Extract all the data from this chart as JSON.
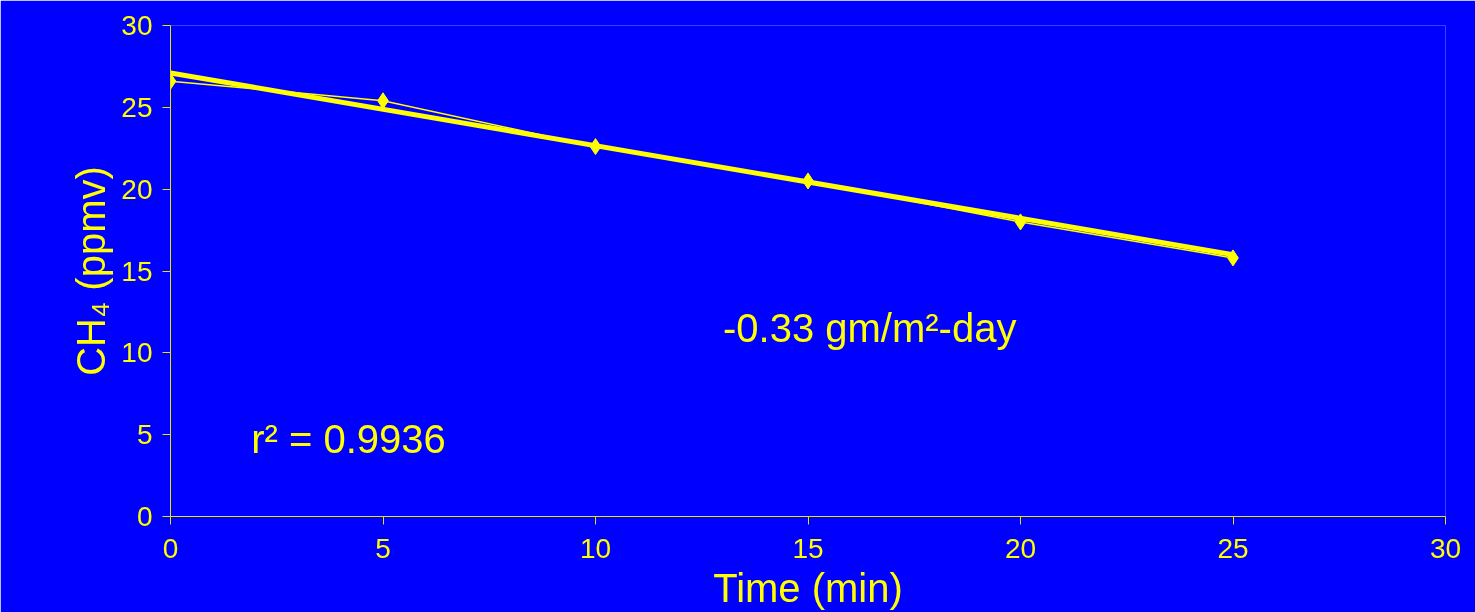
{
  "chart_data": {
    "type": "line",
    "xlabel": "Time (min)",
    "ylabel": "CH₄ (ppmv)",
    "x": [
      0,
      5,
      10,
      15,
      20,
      25
    ],
    "series": [
      {
        "color": "#ffff00",
        "values": [
          26.6,
          25.4,
          22.6,
          20.5,
          18.0,
          15.8
        ],
        "marker": "diamond"
      },
      {
        "type": "line",
        "color": "#ffff00",
        "x": [
          0,
          25
        ],
        "values": [
          27.1,
          16.0
        ],
        "marker": "none"
      }
    ],
    "xlim": [
      0,
      30
    ],
    "xticks": [
      0,
      5,
      10,
      15,
      20,
      25,
      30
    ],
    "ylim": [
      0,
      30
    ],
    "yticks": [
      0,
      5,
      10,
      15,
      20,
      25,
      30
    ],
    "grid": false,
    "annotations": [
      "-0.33 gm/m²-day",
      "r² = 0.9936"
    ]
  }
}
